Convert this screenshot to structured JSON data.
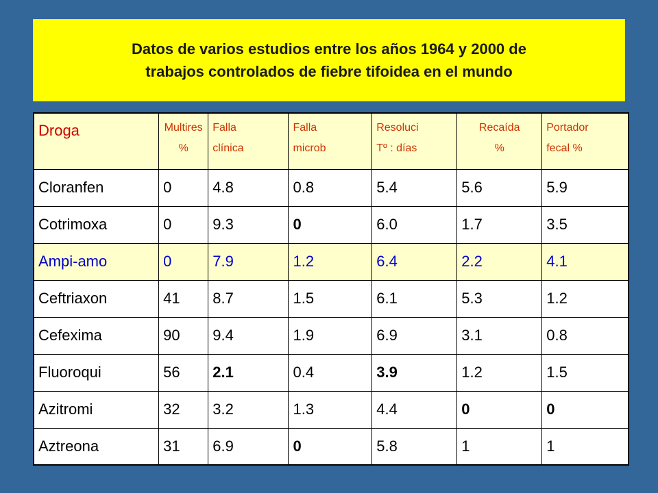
{
  "title": "Datos de varios estudios entre los años 1964 y 2000 de\ntrabajos controlados de fiebre tifoidea en el mundo",
  "colors": {
    "background": "#336699",
    "title_background": "#ffff00",
    "header_background": "#ffffcc",
    "header_text": "#cc3300",
    "highlight_row_background": "#ffffcc",
    "highlight_row_text": "#0000cc"
  },
  "table": {
    "headers": [
      "Droga",
      "Multires\n%",
      "Falla\nclínica",
      "Falla\nmicrob",
      "Resoluci\nTº : días",
      "Recaída\n%",
      "Portador\nfecal %"
    ],
    "rows": [
      {
        "cells": [
          "Cloranfen",
          "0",
          "4.8",
          "0.8",
          "5.4",
          "5.6",
          "5.9"
        ],
        "bold": [],
        "highlight": false
      },
      {
        "cells": [
          "Cotrimoxa",
          "0",
          "9.3",
          "0",
          "6.0",
          "1.7",
          "3.5"
        ],
        "bold": [
          3
        ],
        "highlight": false
      },
      {
        "cells": [
          "Ampi-amo",
          "0",
          "7.9",
          "1.2",
          "6.4",
          "2.2",
          "4.1"
        ],
        "bold": [],
        "highlight": true
      },
      {
        "cells": [
          "Ceftriaxon",
          "41",
          "8.7",
          "1.5",
          "6.1",
          "5.3",
          "1.2"
        ],
        "bold": [],
        "highlight": false
      },
      {
        "cells": [
          "Cefexima",
          "90",
          "9.4",
          "1.9",
          "6.9",
          "3.1",
          "0.8"
        ],
        "bold": [],
        "highlight": false
      },
      {
        "cells": [
          "Fluoroqui",
          "56",
          "2.1",
          "0.4",
          "3.9",
          "1.2",
          "1.5"
        ],
        "bold": [
          2,
          4
        ],
        "highlight": false
      },
      {
        "cells": [
          "Azitromi",
          "32",
          "3.2",
          "1.3",
          "4.4",
          "0",
          "0"
        ],
        "bold": [
          5,
          6
        ],
        "highlight": false
      },
      {
        "cells": [
          "Aztreona",
          "31",
          "6.9",
          "0",
          "5.8",
          "1",
          "1"
        ],
        "bold": [
          3
        ],
        "highlight": false
      }
    ]
  }
}
